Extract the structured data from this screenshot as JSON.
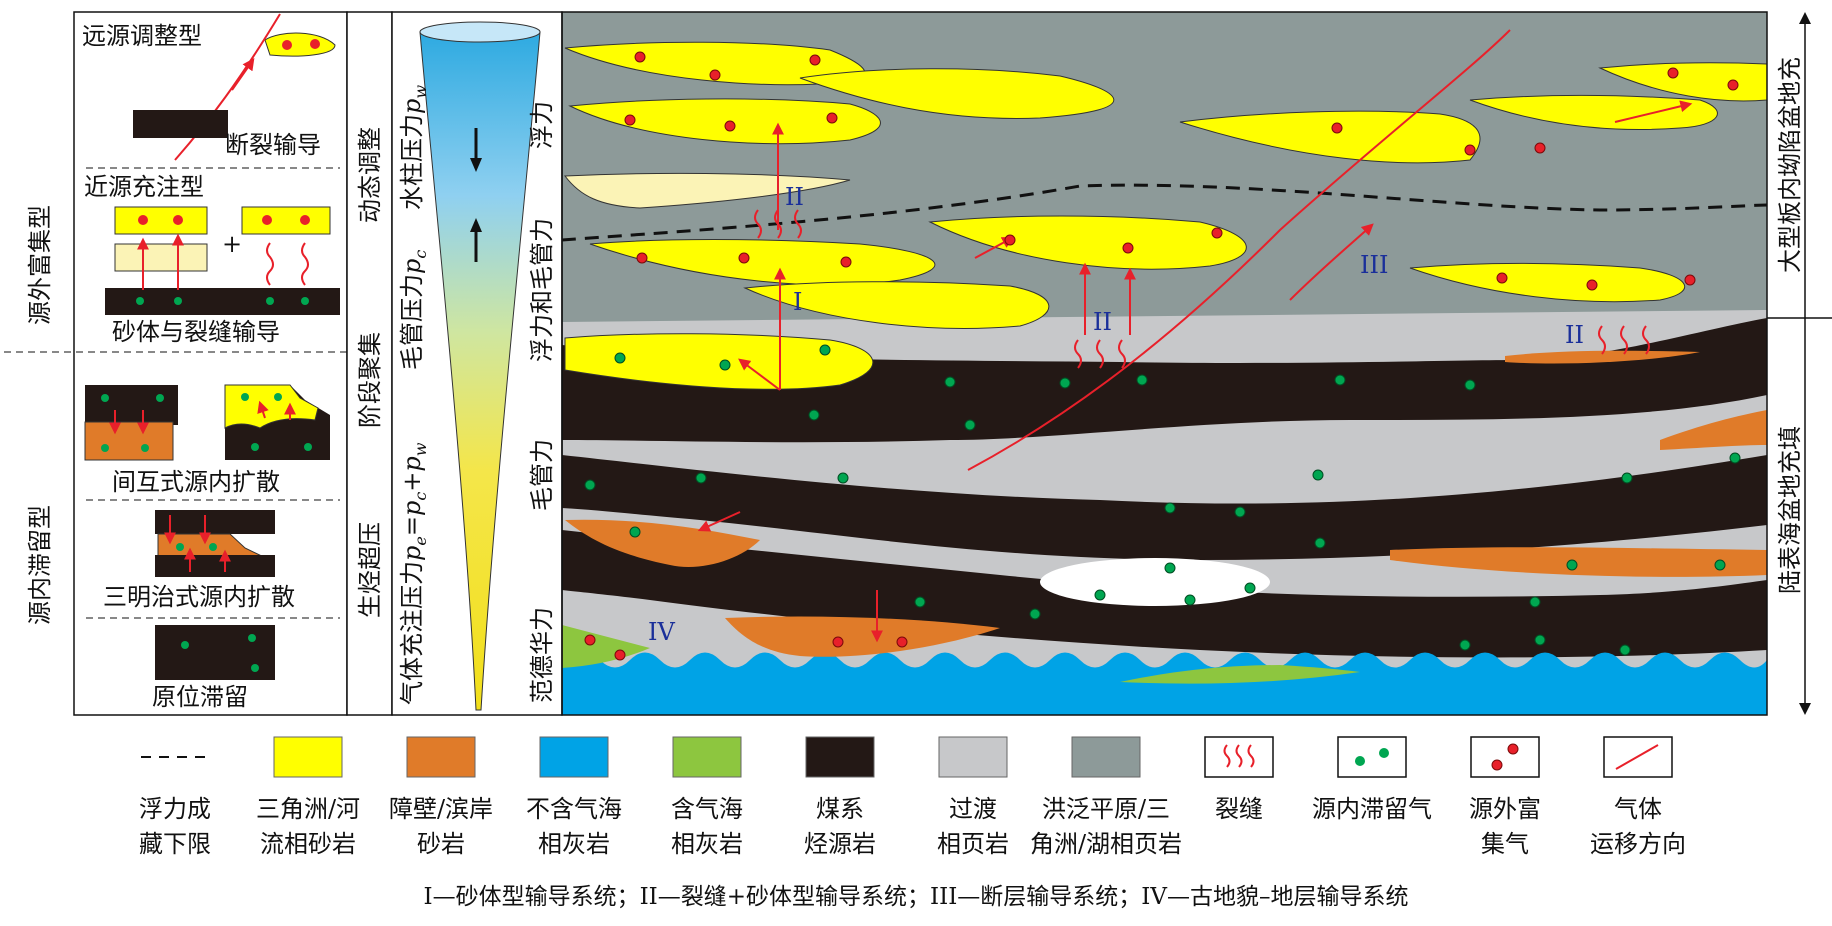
{
  "left_panel": {
    "group_top": "源外富集型",
    "group_bottom": "源内滞留型",
    "distal": "远源调整型",
    "fault": "断裂输导",
    "proximal": "近源充注型",
    "plus": "+",
    "sand_fracture": "砂体与裂缝输导",
    "interbed": "间互式源内扩散",
    "sandwich": "三明治式源内扩散",
    "insitu": "原位滞留"
  },
  "stage_col": {
    "dyn": "动态调整",
    "phase": "阶段聚集",
    "over": "生烃超压"
  },
  "pressure_col": {
    "water": "水柱压力",
    "water_sym": "p",
    "water_sub": "w",
    "cap": "毛管压力",
    "cap_sym": "p",
    "cap_sub": "c",
    "charge": "气体充注压力",
    "charge_formula": "p",
    "charge_sub_e": "e",
    "charge_eq": "=",
    "charge_p2": "p",
    "charge_sub_c": "c",
    "charge_plus": "+",
    "charge_p3": "p",
    "charge_sub_w": "w"
  },
  "force_col": {
    "buoy": "浮力",
    "buoy_cap": "浮力和毛管力",
    "cap": "毛管力",
    "vdw": "范德华力"
  },
  "section": {
    "label_I": "I",
    "label_II": "II",
    "label_III": "III",
    "label_IV": "IV"
  },
  "right_col": {
    "upper": "大型板内坳陷盆地充",
    "lower": "陆表海盆地充填"
  },
  "legend": [
    {
      "key": "dash",
      "line1": "浮力成",
      "line2": "藏下限"
    },
    {
      "key": "yellow",
      "color": "#ffff00",
      "line1": "三角洲/河",
      "line2": "流相砂岩"
    },
    {
      "key": "orange",
      "color": "#e07b29",
      "line1": "障壁/滨岸",
      "line2": "砂岩"
    },
    {
      "key": "blue",
      "color": "#00a3e6",
      "line1": "不含气海",
      "line2": "相灰岩"
    },
    {
      "key": "green",
      "color": "#8dc63f",
      "line1": "含气海",
      "line2": "相灰岩"
    },
    {
      "key": "black",
      "color": "#231815",
      "line1": "煤系",
      "line2": "烃源岩"
    },
    {
      "key": "lightgray",
      "color": "#c7c8ca",
      "line1": "过渡",
      "line2": "相页岩"
    },
    {
      "key": "graygreen",
      "color": "#8d9a99",
      "line1": "洪泛平原/三",
      "line2": "角洲/湖相页岩"
    },
    {
      "key": "fracture",
      "line1": "裂缝",
      "line2": ""
    },
    {
      "key": "insource",
      "line1": "源内滞留气",
      "line2": ""
    },
    {
      "key": "outsource",
      "line1": "源外富",
      "line2": "集气"
    },
    {
      "key": "migration",
      "line1": "气体",
      "line2": "运移方向"
    }
  ],
  "caption": "I—砂体型输导系统；II—裂缝+砂体型输导系统；III—断层输导系统；IV—古地貌–地层输导系统",
  "colors": {
    "sand_yellow": "#ffff00",
    "orange": "#e07b29",
    "sea_blue": "#00a3e6",
    "green_limestone": "#8dc63f",
    "coal_black": "#231815",
    "light_gray": "#c7c8ca",
    "gray_green": "#8d9a99",
    "arrow_red": "#e8202a",
    "dot_green": "#00a651"
  }
}
